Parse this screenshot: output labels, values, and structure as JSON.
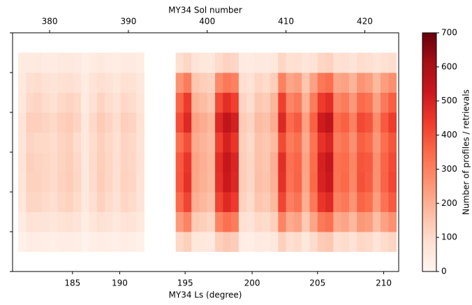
{
  "chart_data": {
    "type": "heatmap",
    "title_top": "MY34 Sol number",
    "xlabel": "MY34 Ls (degree)",
    "colormap": "Reds",
    "xlim": [
      375.3,
      424.3
    ],
    "xticks_top": [
      380,
      390,
      400,
      410,
      420
    ],
    "xticks": [
      {
        "value": 382.9,
        "label": "185"
      },
      {
        "value": 388.9,
        "label": "190"
      },
      {
        "value": 397.2,
        "label": "195"
      },
      {
        "value": 405.7,
        "label": "200"
      },
      {
        "value": 414.0,
        "label": "205"
      },
      {
        "value": 422.4,
        "label": "210"
      }
    ],
    "ylim": [
      0,
      6
    ],
    "yticks": [
      0,
      1,
      2,
      3,
      4,
      5,
      6
    ],
    "x": [
      376.5,
      377.5,
      378.5,
      379.5,
      380.5,
      381.5,
      382.5,
      383.5,
      384.5,
      385.5,
      386.5,
      387.5,
      388.5,
      389.5,
      390.5,
      391.5,
      392.5,
      393.5,
      394.5,
      395.5,
      396.5,
      397.5,
      398.5,
      399.5,
      400.5,
      401.5,
      402.5,
      403.5,
      404.5,
      405.5,
      406.5,
      407.5,
      408.5,
      409.5,
      410.5,
      411.5,
      412.5,
      413.5,
      414.5,
      415.5,
      416.5,
      417.5,
      418.5,
      419.5,
      420.5,
      421.5,
      422.5,
      423.5
    ],
    "y": [
      0.75,
      1.25,
      1.75,
      2.25,
      2.75,
      3.25,
      3.75,
      4.25,
      4.75,
      5.25
    ],
    "z": [
      [
        18,
        33,
        33,
        30,
        27,
        33,
        36,
        30,
        15,
        27,
        36,
        30,
        24,
        33,
        30,
        21,
        null,
        null,
        null,
        null,
        105,
        126,
        60,
        54,
        48,
        126,
        144,
        132,
        36,
        30,
        45,
        42,
        54,
        126,
        90,
        99,
        60,
        96,
        135,
        144,
        90,
        96,
        78,
        108,
        102,
        72,
        99,
        114
      ],
      [
        42,
        77,
        77,
        70,
        63,
        77,
        84,
        70,
        35,
        63,
        84,
        70,
        56,
        77,
        70,
        49,
        null,
        null,
        null,
        null,
        245,
        294,
        140,
        126,
        112,
        294,
        336,
        308,
        84,
        70,
        105,
        98,
        126,
        294,
        210,
        231,
        140,
        224,
        315,
        336,
        210,
        224,
        182,
        252,
        238,
        168,
        231,
        266
      ],
      [
        60,
        110,
        110,
        100,
        90,
        110,
        120,
        100,
        50,
        90,
        120,
        100,
        80,
        110,
        100,
        70,
        null,
        null,
        null,
        null,
        350,
        420,
        200,
        180,
        160,
        420,
        480,
        440,
        120,
        100,
        150,
        140,
        180,
        420,
        300,
        330,
        200,
        320,
        450,
        480,
        300,
        320,
        260,
        360,
        340,
        240,
        330,
        380
      ],
      [
        66,
        121,
        121,
        110,
        99,
        121,
        132,
        110,
        55,
        99,
        132,
        110,
        88,
        121,
        110,
        77,
        null,
        null,
        null,
        null,
        385,
        462,
        220,
        198,
        176,
        462,
        528,
        484,
        132,
        110,
        165,
        154,
        198,
        462,
        330,
        363,
        220,
        352,
        495,
        528,
        330,
        352,
        286,
        396,
        374,
        264,
        363,
        418
      ],
      [
        70,
        125,
        118,
        112,
        100,
        118,
        130,
        108,
        58,
        102,
        128,
        112,
        90,
        118,
        108,
        80,
        null,
        null,
        null,
        null,
        380,
        450,
        225,
        200,
        180,
        470,
        540,
        490,
        130,
        112,
        160,
        150,
        200,
        470,
        335,
        360,
        225,
        345,
        500,
        540,
        335,
        345,
        290,
        390,
        380,
        270,
        360,
        410
      ],
      [
        65,
        115,
        105,
        105,
        95,
        115,
        125,
        95,
        55,
        95,
        125,
        105,
        85,
        115,
        105,
        75,
        null,
        null,
        null,
        null,
        340,
        400,
        210,
        190,
        170,
        430,
        500,
        450,
        125,
        105,
        155,
        145,
        175,
        410,
        310,
        340,
        210,
        330,
        460,
        490,
        310,
        330,
        270,
        370,
        350,
        250,
        340,
        390
      ],
      [
        69,
        127,
        127,
        115,
        104,
        127,
        138,
        115,
        58,
        104,
        138,
        115,
        92,
        127,
        115,
        81,
        null,
        null,
        null,
        null,
        403,
        483,
        230,
        207,
        184,
        483,
        552,
        506,
        138,
        115,
        173,
        161,
        207,
        483,
        345,
        380,
        230,
        368,
        518,
        552,
        345,
        368,
        299,
        414,
        391,
        276,
        380,
        437
      ],
      [
        55,
        105,
        115,
        95,
        85,
        105,
        115,
        105,
        45,
        85,
        115,
        95,
        75,
        105,
        95,
        65,
        null,
        null,
        null,
        null,
        360,
        440,
        190,
        170,
        150,
        410,
        470,
        430,
        115,
        95,
        145,
        135,
        185,
        430,
        290,
        320,
        190,
        310,
        440,
        470,
        290,
        310,
        250,
        350,
        330,
        230,
        320,
        370
      ],
      [
        50,
        90,
        95,
        80,
        70,
        85,
        90,
        75,
        40,
        70,
        90,
        80,
        60,
        85,
        80,
        55,
        null,
        null,
        null,
        null,
        260,
        310,
        150,
        130,
        120,
        280,
        320,
        300,
        90,
        80,
        110,
        100,
        130,
        300,
        220,
        240,
        150,
        230,
        320,
        340,
        220,
        230,
        190,
        260,
        240,
        180,
        240,
        270
      ],
      [
        40,
        45,
        50,
        42,
        40,
        48,
        52,
        44,
        30,
        40,
        50,
        42,
        38,
        45,
        44,
        35,
        null,
        null,
        null,
        null,
        90,
        110,
        70,
        60,
        55,
        100,
        120,
        110,
        45,
        40,
        50,
        48,
        60,
        110,
        85,
        90,
        65,
        80,
        110,
        120,
        85,
        90,
        70,
        95,
        90,
        70,
        85,
        95
      ]
    ],
    "colorbar": {
      "label": "Number of profiles / retrievals",
      "lim": [
        0,
        700
      ],
      "ticks": [
        0,
        100,
        200,
        300,
        400,
        500,
        600,
        700
      ]
    }
  }
}
